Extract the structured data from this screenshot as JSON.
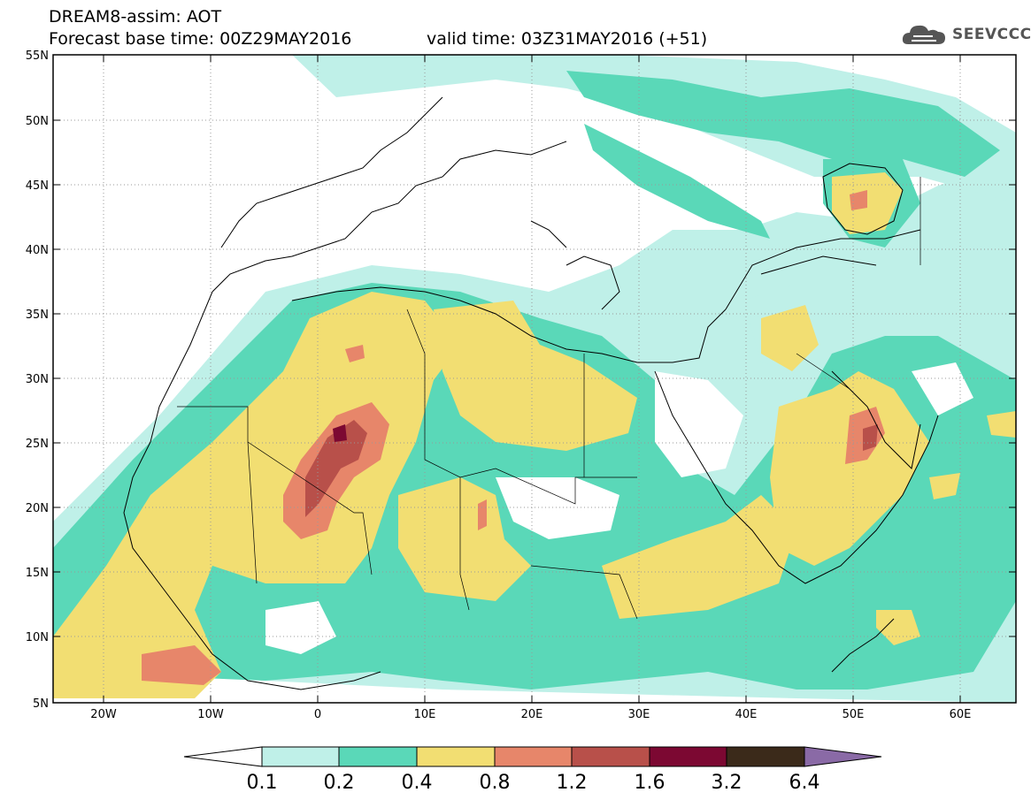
{
  "header": {
    "model_line": "DREAM8-assim: AOT",
    "base_time": "Forecast base time: 00Z29MAY2016",
    "valid_time": "valid time: 03Z31MAY2016 (+51)",
    "logo_text": "SEEVCCC"
  },
  "map": {
    "lon_range": [
      -25,
      65
    ],
    "lat_range": [
      5,
      55
    ],
    "lat_ticks": [
      "55N",
      "50N",
      "45N",
      "40N",
      "35N",
      "30N",
      "25N",
      "20N",
      "15N",
      "10N",
      "5N"
    ],
    "lon_ticks": [
      "20W",
      "10W",
      "0",
      "10E",
      "20E",
      "30E",
      "40E",
      "50E",
      "60E"
    ]
  },
  "colorbar": {
    "levels": [
      "0.1",
      "0.2",
      "0.4",
      "0.8",
      "1.2",
      "1.6",
      "3.2",
      "6.4"
    ],
    "colors": [
      "#bff0e8",
      "#5ad8b8",
      "#f2de72",
      "#e7866a",
      "#b8504a",
      "#7c0832",
      "#3b2a1a",
      "#8a6aa6"
    ]
  }
}
